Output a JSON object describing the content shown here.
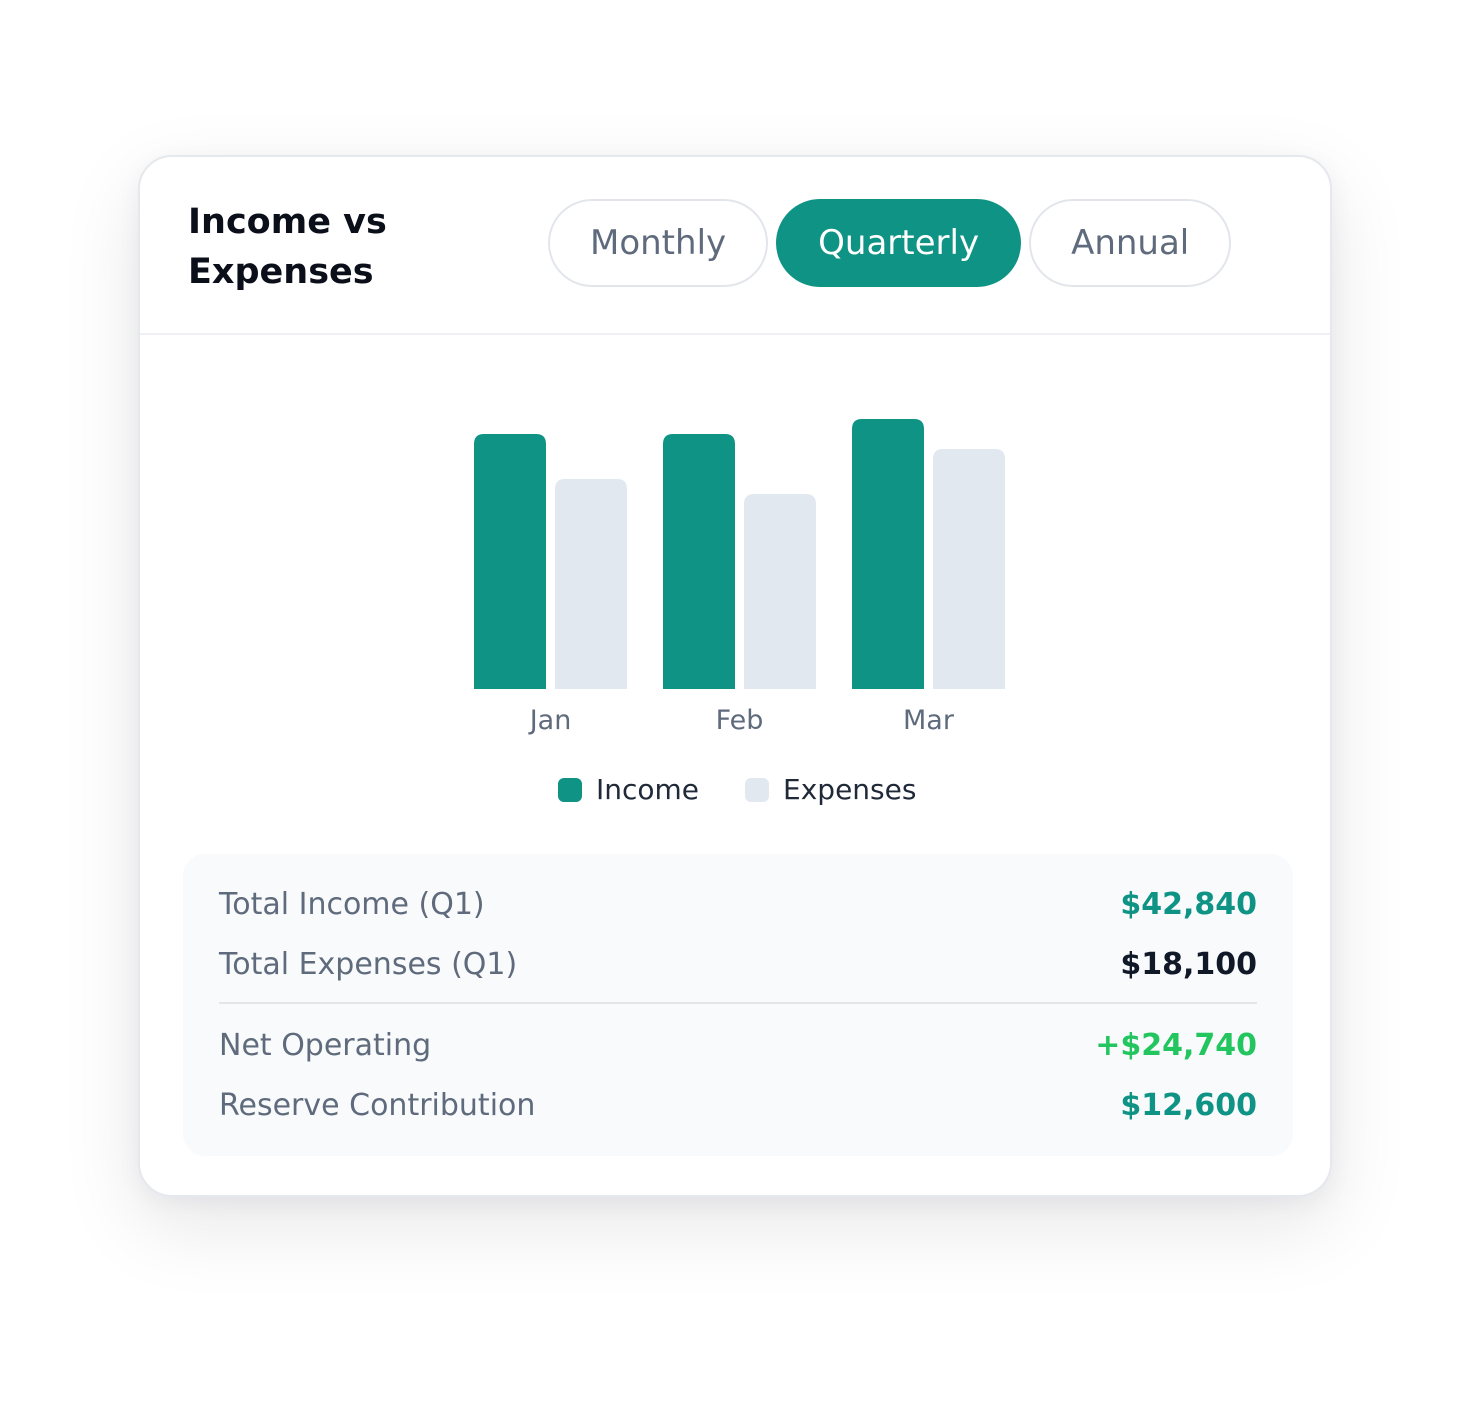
{
  "card": {
    "title": "Income vs Expenses"
  },
  "tabs": [
    {
      "label": "Monthly",
      "active": false
    },
    {
      "label": "Quarterly",
      "active": true
    },
    {
      "label": "Annual",
      "active": false
    }
  ],
  "colors": {
    "income": "#0e9384",
    "expenses": "#e2e8f0",
    "positive": "#22c55e",
    "accent": "#0e9384",
    "dark": "#111827"
  },
  "chart_data": {
    "type": "bar",
    "categories": [
      "Jan",
      "Feb",
      "Mar"
    ],
    "series": [
      {
        "name": "Income",
        "values": [
          17,
          17,
          18
        ]
      },
      {
        "name": "Expenses",
        "values": [
          14,
          13,
          16
        ]
      }
    ],
    "ylim": [
      0,
      20
    ],
    "grid": false,
    "legend": "bottom-center",
    "note_units": ""
  },
  "legend": {
    "income": "Income",
    "expenses": "Expenses"
  },
  "summary": {
    "total_income_label": "Total Income (Q1)",
    "total_income_value": "$42,840",
    "total_expenses_label": "Total Expenses (Q1)",
    "total_expenses_value": "$18,100",
    "net_operating_label": "Net Operating",
    "net_operating_value": "+$24,740",
    "reserve_label": "Reserve Contribution",
    "reserve_value": "$12,600"
  }
}
